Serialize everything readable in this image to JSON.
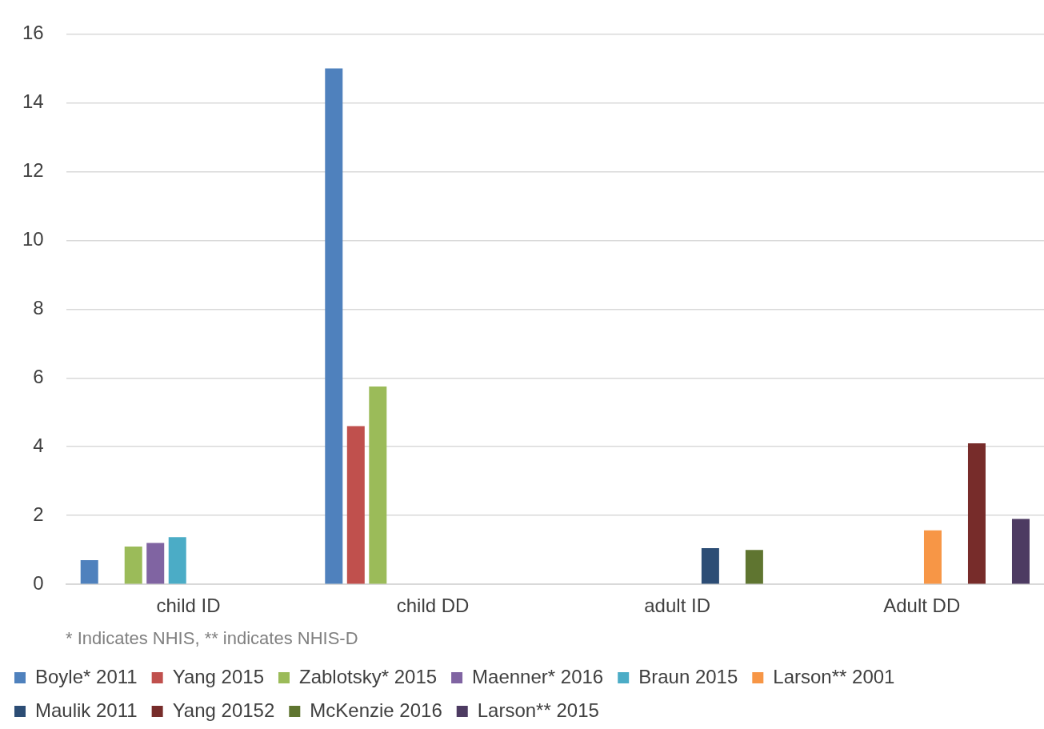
{
  "chart_data": {
    "type": "bar",
    "categories": [
      "child ID",
      "child DD",
      "adult ID",
      "Adult DD"
    ],
    "series": [
      {
        "name": "Boyle* 2011",
        "color": "#4f81bd",
        "values": [
          0.7,
          15,
          null,
          null
        ]
      },
      {
        "name": "Yang 2015",
        "color": "#c0504d",
        "values": [
          null,
          4.6,
          null,
          null
        ]
      },
      {
        "name": "Zablotsky* 2015",
        "color": "#9bbb59",
        "values": [
          1.1,
          5.75,
          null,
          null
        ]
      },
      {
        "name": "Maenner* 2016",
        "color": "#8064a2",
        "values": [
          1.2,
          null,
          null,
          null
        ]
      },
      {
        "name": "Braun 2015",
        "color": "#4bacc6",
        "values": [
          1.37,
          null,
          null,
          null
        ]
      },
      {
        "name": "Larson** 2001",
        "color": "#f79646",
        "values": [
          null,
          null,
          null,
          1.57
        ]
      },
      {
        "name": "Maulik 2011",
        "color": "#2c4d75",
        "values": [
          null,
          null,
          1.05,
          null
        ]
      },
      {
        "name": "Yang 20152",
        "color": "#772c2a",
        "values": [
          null,
          null,
          null,
          4.1
        ]
      },
      {
        "name": "McKenzie 2016",
        "color": "#5f7530",
        "values": [
          null,
          null,
          1.0,
          null
        ]
      },
      {
        "name": "Larson** 2015",
        "color": "#4d3b62",
        "values": [
          null,
          null,
          null,
          1.9
        ]
      }
    ],
    "ylim": [
      0,
      16
    ],
    "yticks": [
      0,
      2,
      4,
      6,
      8,
      10,
      12,
      14,
      16
    ],
    "grid": "y",
    "legend": "bottom",
    "annotations": [
      "* Indicates NHIS, ** indicates NHIS-D"
    ]
  }
}
